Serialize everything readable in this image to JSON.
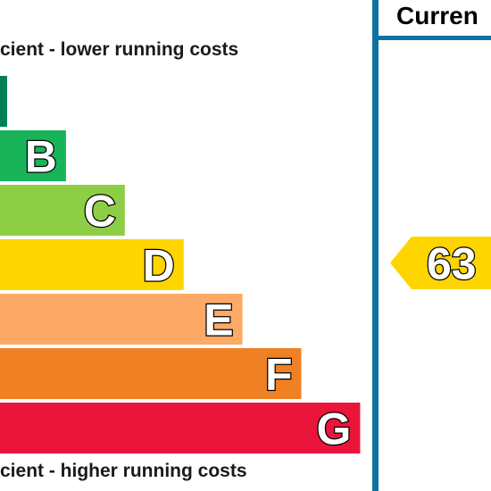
{
  "chart_data": {
    "type": "bar",
    "top_caption": "cient - lower running costs",
    "bottom_caption": "cient - higher running costs",
    "bands": [
      {
        "letter": "",
        "color": "#008054"
      },
      {
        "letter": "B",
        "color": "#19b459"
      },
      {
        "letter": "C",
        "color": "#8dce46"
      },
      {
        "letter": "D",
        "color": "#ffd500"
      },
      {
        "letter": "E",
        "color": "#fcaa65"
      },
      {
        "letter": "F",
        "color": "#ef8023"
      },
      {
        "letter": "G",
        "color": "#e9153b"
      }
    ],
    "column_header": "Curren",
    "current_rating": {
      "value": "63",
      "band": "D",
      "color": "#ffd500"
    }
  }
}
